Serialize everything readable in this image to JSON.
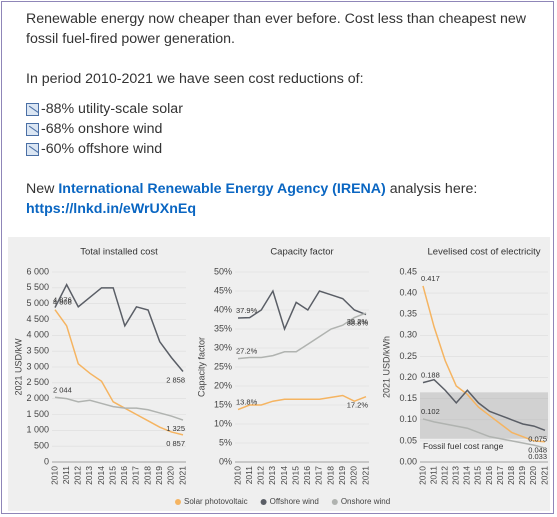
{
  "post": {
    "intro": "Renewable energy now cheaper than ever before. Cost less than cheapest new fossil fuel-fired power generation.",
    "period": "In period 2010-2021 we have seen cost reductions of:",
    "reductions": [
      "-88% utility-scale solar",
      "-68% onshore wind",
      "-60% offshore wind"
    ],
    "irena_prefix": "New",
    "irena_link": "International Renewable Energy Agency (IRENA)",
    "irena_suffix": "analysis here:",
    "url": "https://lnkd.in/eWrUXnEq"
  },
  "chart_data": [
    {
      "type": "line",
      "title": "Total installed cost",
      "y_label": "2021 USD/kW",
      "categories": [
        "2010",
        "2011",
        "2012",
        "2013",
        "2014",
        "2015",
        "2016",
        "2017",
        "2018",
        "2019",
        "2020",
        "2021"
      ],
      "ylim": [
        0,
        6000
      ],
      "yticks": [
        0,
        500,
        {
          "value": 1000,
          "label": "1 000"
        },
        {
          "value": 1500,
          "label": "1 500"
        },
        {
          "value": 2000,
          "label": "2 000"
        },
        {
          "value": 2500,
          "label": "2 500"
        },
        {
          "value": 3000,
          "label": "3 000"
        },
        {
          "value": 3500,
          "label": "3 500"
        },
        {
          "value": 4000,
          "label": "4 000"
        },
        {
          "value": 4500,
          "label": "4 500"
        },
        {
          "value": 5000,
          "label": "5 000"
        },
        {
          "value": 5500,
          "label": "5 500"
        },
        {
          "value": 6000,
          "label": "6 000"
        }
      ],
      "series": [
        {
          "name": "Solar photovoltaic",
          "color": "#f5b461",
          "values": [
            4808,
            4300,
            3100,
            2800,
            2550,
            1900,
            1700,
            1500,
            1300,
            1100,
            950,
            857
          ],
          "value_labels": [
            "4 808",
            null,
            null,
            null,
            null,
            null,
            null,
            null,
            null,
            null,
            null,
            "0 857"
          ]
        },
        {
          "name": "Offshore wind",
          "color": "#5a5e66",
          "values": [
            4876,
            5600,
            4900,
            5200,
            5500,
            5500,
            4300,
            4900,
            4800,
            3800,
            3300,
            2858
          ],
          "value_labels": [
            "4 876",
            null,
            null,
            null,
            null,
            null,
            null,
            null,
            null,
            null,
            null,
            "2 858"
          ]
        },
        {
          "name": "Onshore wind",
          "color": "#b0b3b0",
          "values": [
            2044,
            2000,
            1900,
            1950,
            1850,
            1750,
            1700,
            1700,
            1650,
            1550,
            1450,
            1325
          ],
          "value_labels": [
            "2 044",
            null,
            null,
            null,
            null,
            null,
            null,
            null,
            null,
            null,
            null,
            "1 325"
          ]
        }
      ]
    },
    {
      "type": "line",
      "title": "Capacity factor",
      "y_label": "Capacity factor",
      "categories": [
        "2010",
        "2011",
        "2012",
        "2013",
        "2014",
        "2015",
        "2016",
        "2017",
        "2018",
        "2019",
        "2020",
        "2021"
      ],
      "ylim": [
        0,
        50
      ],
      "yticks": [
        {
          "value": 0,
          "label": "0%"
        },
        {
          "value": 5,
          "label": "5%"
        },
        {
          "value": 10,
          "label": "10%"
        },
        {
          "value": 15,
          "label": "15%"
        },
        {
          "value": 20,
          "label": "20%"
        },
        {
          "value": 25,
          "label": "25%"
        },
        {
          "value": 30,
          "label": "30%"
        },
        {
          "value": 35,
          "label": "35%"
        },
        {
          "value": 40,
          "label": "40%"
        },
        {
          "value": 45,
          "label": "45%"
        },
        {
          "value": 50,
          "label": "50%"
        }
      ],
      "series": [
        {
          "name": "Solar photovoltaic",
          "color": "#f5b461",
          "values": [
            13.8,
            15,
            15,
            16,
            16.5,
            16.5,
            16.5,
            16.5,
            17,
            17.5,
            16,
            17.2
          ],
          "value_labels": [
            "13.8%",
            null,
            null,
            null,
            null,
            null,
            null,
            null,
            null,
            null,
            null,
            "17.2%"
          ]
        },
        {
          "name": "Offshore wind",
          "color": "#5a5e66",
          "values": [
            37.9,
            38,
            40,
            45,
            35,
            42,
            40,
            45,
            44,
            43,
            40,
            38.8
          ],
          "value_labels": [
            "37.9%",
            null,
            null,
            null,
            null,
            null,
            null,
            null,
            null,
            null,
            null,
            "38.8%"
          ]
        },
        {
          "name": "Onshore wind",
          "color": "#b0b3b0",
          "values": [
            27.2,
            27.5,
            27.5,
            28,
            29,
            29,
            31,
            33,
            35,
            36,
            38,
            39.2
          ],
          "value_labels": [
            "27.2%",
            null,
            null,
            null,
            null,
            null,
            null,
            null,
            null,
            null,
            null,
            "39.2%"
          ]
        }
      ]
    },
    {
      "type": "line",
      "title": "Levelised cost of electricity",
      "y_label": "2021 USD/kWh",
      "categories": [
        "2010",
        "2011",
        "2012",
        "2013",
        "2014",
        "2015",
        "2016",
        "2017",
        "2018",
        "2019",
        "2020",
        "2021"
      ],
      "ylim": [
        0,
        0.45
      ],
      "yticks": [
        {
          "value": 0,
          "label": "0.00"
        },
        0.05,
        {
          "value": 0.1,
          "label": "0.10"
        },
        0.15,
        {
          "value": 0.2,
          "label": "0.20"
        },
        0.25,
        {
          "value": 0.3,
          "label": "0.30"
        },
        0.35,
        {
          "value": 0.4,
          "label": "0.40"
        },
        0.45
      ],
      "band": [
        0.055,
        0.165
      ],
      "band_label": "Fossil fuel cost range",
      "series": [
        {
          "name": "Solar photovoltaic",
          "color": "#f5b461",
          "values": [
            0.417,
            0.32,
            0.24,
            0.18,
            0.16,
            0.13,
            0.11,
            0.09,
            0.07,
            0.06,
            0.05,
            0.048
          ],
          "value_labels": [
            "0.417",
            null,
            null,
            null,
            null,
            null,
            null,
            null,
            null,
            null,
            null,
            "0.048"
          ]
        },
        {
          "name": "Offshore wind",
          "color": "#5a5e66",
          "values": [
            0.188,
            0.195,
            0.17,
            0.14,
            0.17,
            0.14,
            0.12,
            0.11,
            0.1,
            0.09,
            0.085,
            0.075
          ],
          "value_labels": [
            "0.188",
            null,
            null,
            null,
            null,
            null,
            null,
            null,
            null,
            null,
            null,
            "0.075"
          ]
        },
        {
          "name": "Onshore wind",
          "color": "#b0b3b0",
          "values": [
            0.102,
            0.095,
            0.09,
            0.085,
            0.08,
            0.07,
            0.06,
            0.055,
            0.05,
            0.045,
            0.04,
            0.033
          ],
          "value_labels": [
            "0.102",
            null,
            null,
            null,
            null,
            null,
            null,
            null,
            null,
            null,
            null,
            "0.033"
          ]
        }
      ]
    }
  ]
}
